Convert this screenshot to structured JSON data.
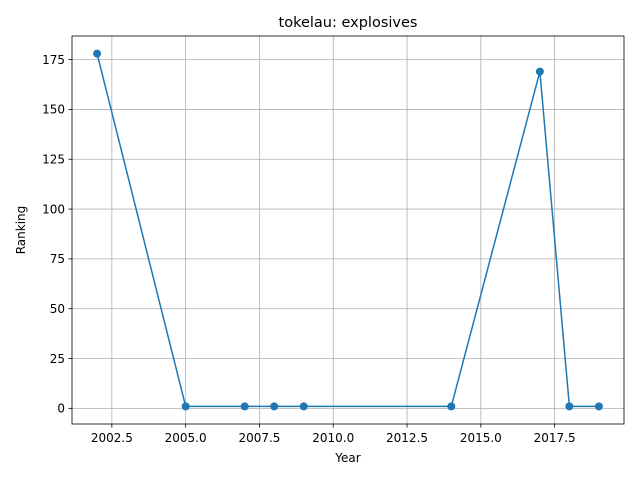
{
  "chart_data": {
    "type": "line",
    "title": "tokelau: explosives",
    "xlabel": "Year",
    "ylabel": "Ranking",
    "x": [
      2002,
      2005,
      2007,
      2008,
      2009,
      2014,
      2017,
      2018,
      2019
    ],
    "series": [
      {
        "values": [
          178,
          1,
          1,
          1,
          1,
          1,
          169,
          1,
          1
        ]
      }
    ],
    "xlim": [
      2001.15,
      2019.85
    ],
    "ylim": [
      -7.85,
      186.85
    ],
    "xticks": [
      2002.5,
      2005.0,
      2007.5,
      2010.0,
      2012.5,
      2015.0,
      2017.5
    ],
    "xtick_labels": [
      "2002.5",
      "2005.0",
      "2007.5",
      "2010.0",
      "2012.5",
      "2015.0",
      "2017.5"
    ],
    "yticks": [
      0,
      25,
      50,
      75,
      100,
      125,
      150,
      175
    ],
    "ytick_labels": [
      "0",
      "25",
      "50",
      "75",
      "100",
      "125",
      "150",
      "175"
    ],
    "grid": true,
    "line_color": "#1f77b4",
    "marker": "circle"
  }
}
